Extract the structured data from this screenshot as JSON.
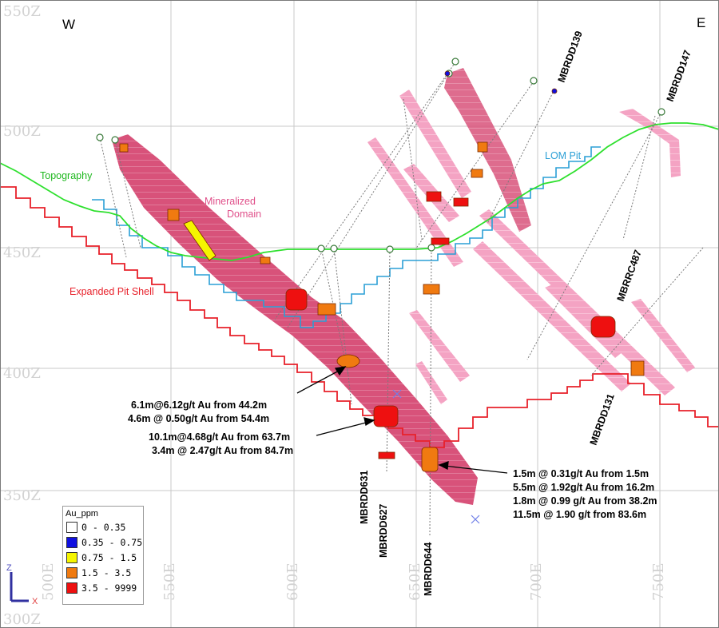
{
  "compass": {
    "west": "W",
    "east": "E"
  },
  "axes": {
    "z_labels": [
      "550Z",
      "500Z",
      "450Z",
      "400Z",
      "350Z",
      "300Z"
    ],
    "e_labels": [
      "500E",
      "550E",
      "600E",
      "650E",
      "700E",
      "750E"
    ]
  },
  "labels": {
    "topography": "Topography",
    "lom_pit": "LOM Pit",
    "expanded_pit": "Expanded Pit Shell",
    "domain_line1": "Mineralized",
    "domain_line2": "Domain"
  },
  "colors": {
    "topography": "#2ee02e",
    "lom_pit": "#2a9fd6",
    "expanded_pit": "#e8202a",
    "domain_dark": "#d8527a",
    "domain_light": "#f4a3c3",
    "intercept": "#e0621e"
  },
  "drillholes": [
    "MBRDD139",
    "MBRDD147",
    "MBRRC487",
    "MBRDD131",
    "MBRDD631",
    "MBRDD627",
    "MBRDD644"
  ],
  "annotations": [
    [
      "6.1m@6.12g/t Au from 44.2m",
      "4.6m @ 0.50g/t Au from 54.4m"
    ],
    [
      "10.1m@4.68g/t Au from 63.7m",
      "3.4m @ 2.47g/t Au from 84.7m"
    ],
    [
      "1.5m @ 0.31g/t Au from 1.5m",
      "5.5m @ 1.92g/t Au from 16.2m",
      "1.8m @ 0.99 g/t Au from 38.2m",
      "11.5m @ 1.90 g/t from 83.6m"
    ]
  ],
  "legend": {
    "title": "Au_ppm",
    "items": [
      {
        "label": "0 - 0.35",
        "color": "#ffffff"
      },
      {
        "label": "0.35 - 0.75",
        "color": "#1010e0"
      },
      {
        "label": "0.75 - 1.5",
        "color": "#f5f500"
      },
      {
        "label": "1.5 - 3.5",
        "color": "#f07a10"
      },
      {
        "label": "3.5 - 9999",
        "color": "#ee1010"
      }
    ]
  },
  "axis_triad": {
    "z": "Z",
    "x": "X"
  }
}
